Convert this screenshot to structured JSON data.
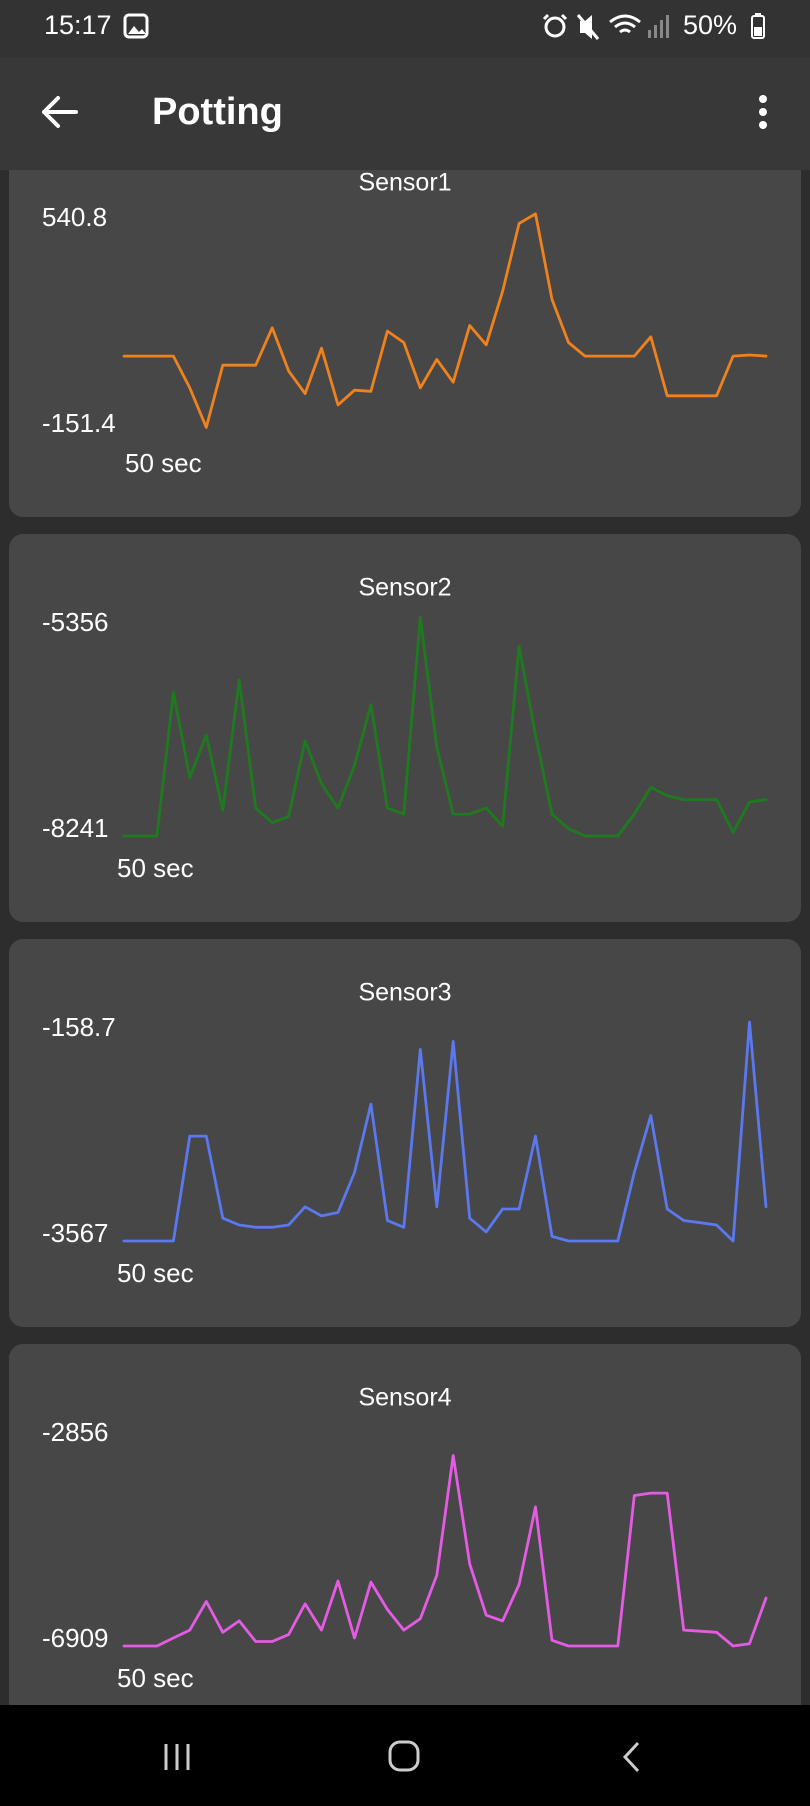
{
  "status_bar": {
    "time": "15:17",
    "battery": "50%"
  },
  "app_bar": {
    "title": "Potting"
  },
  "chart_data": [
    {
      "type": "line",
      "title": "Sensor1",
      "x_label": "50 sec",
      "ylim": [
        -151.4,
        540.8
      ],
      "color": "#f0821e",
      "values": [
        85.3,
        85.3,
        85.3,
        85.3,
        -15.2,
        -140,
        56.6,
        56.6,
        56.6,
        174.9,
        38.6,
        -33.1,
        110.4,
        -69.0,
        -22.4,
        -25.9,
        164.2,
        128.3,
        -15.2,
        74.5,
        2.7,
        182.1,
        121.1,
        289.7,
        504.9,
        535.0,
        264.6,
        128.3,
        85.3,
        85.3,
        85.3,
        85.3,
        146.2,
        -40.3,
        -40.3,
        -40.3,
        -40.3,
        85.3,
        88.8,
        85.3
      ]
    },
    {
      "type": "line",
      "title": "Sensor2",
      "x_label": "50 sec",
      "ylim": [
        -8241,
        -5356
      ],
      "color": "#1f7a1f",
      "values": [
        -8241,
        -8241,
        -8241,
        -6350,
        -7472,
        -6911,
        -7905,
        -6190,
        -7873,
        -8065,
        -7985,
        -6991,
        -7552,
        -7873,
        -7312,
        -6510,
        -7873,
        -7953,
        -5356,
        -7071,
        -7953,
        -7953,
        -7873,
        -8113,
        -5741,
        -6911,
        -7953,
        -8145,
        -8241,
        -8241,
        -8241,
        -7953,
        -7600,
        -7712,
        -7761,
        -7761,
        -7761,
        -8193,
        -7793,
        -7761
      ]
    },
    {
      "type": "line",
      "title": "Sensor3",
      "x_label": "50 sec",
      "ylim": [
        -3567,
        -158.7
      ],
      "color": "#5b78ee",
      "values": [
        -3567,
        -3567,
        -3567,
        -3567,
        -1933.7,
        -1933.7,
        -3211.7,
        -3318.2,
        -3353.7,
        -3353.7,
        -3318.2,
        -3034.2,
        -3176.2,
        -3123,
        -2501.7,
        -1436.7,
        -3247.2,
        -3353.7,
        -584.7,
        -3034.2,
        -460.5,
        -3211.7,
        -3424.7,
        -3069.7,
        -3069.7,
        -1933.7,
        -3495.7,
        -3567,
        -3567,
        -3567,
        -3567,
        -2501.7,
        -1614.2,
        -3069.7,
        -3247.2,
        -3282.7,
        -3318.2,
        -3567,
        -158.7,
        -3034.2
      ]
    },
    {
      "type": "line",
      "title": "Sensor4",
      "x_label": "50 sec",
      "ylim": [
        -6909,
        -2856
      ],
      "color": "#e35ce3",
      "values": [
        -6909,
        -6909,
        -6909,
        -6761,
        -6614,
        -6086,
        -6656,
        -6445,
        -6825,
        -6825,
        -6698,
        -6128,
        -6614,
        -5706,
        -6761,
        -5727,
        -6234,
        -6614,
        -6403,
        -5600,
        -3384,
        -5389,
        -6339,
        -6445,
        -5769,
        -4334,
        -6804,
        -6909,
        -6909,
        -6909,
        -6909,
        -4123,
        -4080,
        -4080,
        -6614,
        -6635,
        -6656,
        -6909,
        -6867,
        -6023
      ]
    }
  ]
}
